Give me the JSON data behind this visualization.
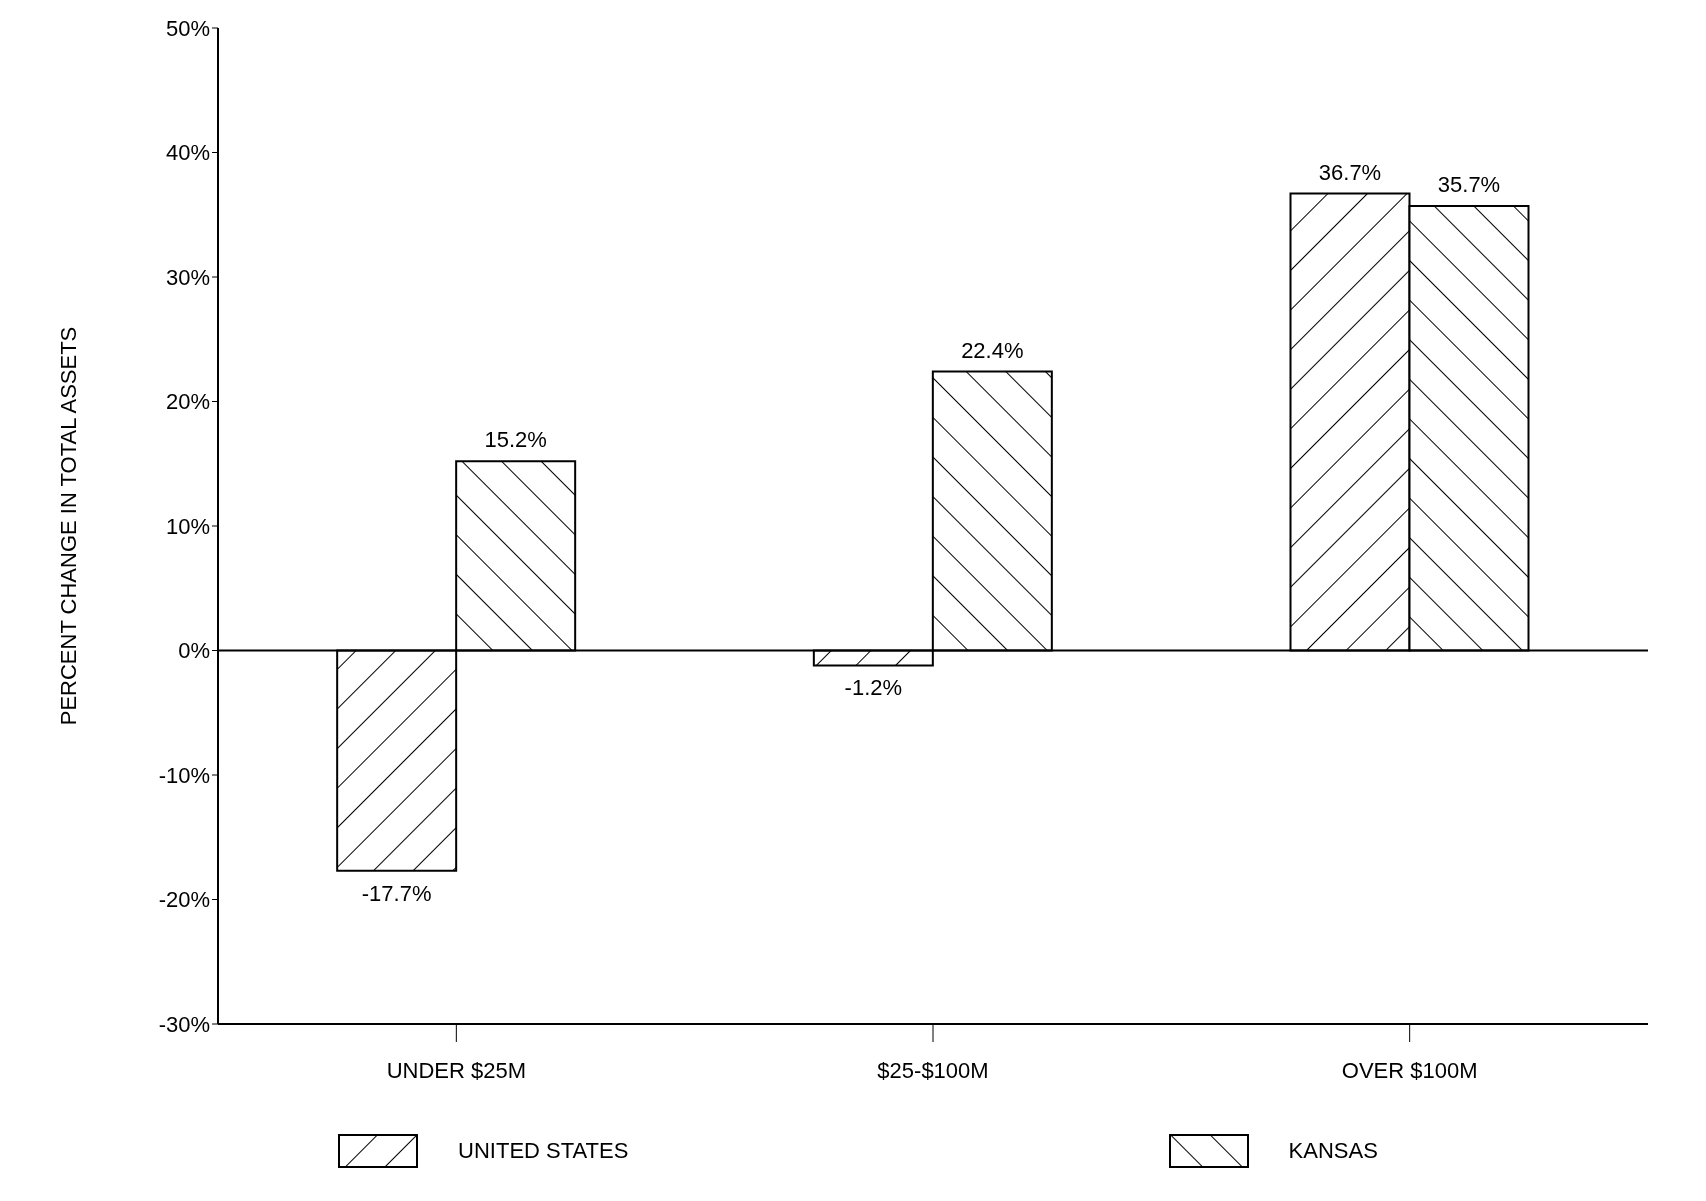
{
  "chart_data": {
    "type": "bar",
    "ylabel": "PERCENT CHANGE IN TOTAL ASSETS",
    "categories": [
      "UNDER $25M",
      "$25-$100M",
      "OVER $100M"
    ],
    "series": [
      {
        "name": "UNITED STATES",
        "color": "#000000",
        "values": [
          -17.7,
          -1.2,
          36.7
        ],
        "value_labels": [
          "-17.7%",
          "-1.2%",
          "36.7%"
        ]
      },
      {
        "name": "KANSAS",
        "color": "#000000",
        "values": [
          15.2,
          22.4,
          35.7
        ],
        "value_labels": [
          "15.2%",
          "22.4%",
          "35.7%"
        ]
      }
    ],
    "ylim": [
      -30,
      50
    ],
    "yticks": [
      {
        "value": -30,
        "label": "-30%"
      },
      {
        "value": -20,
        "label": "-20%"
      },
      {
        "value": -10,
        "label": "-10%"
      },
      {
        "value": 0,
        "label": "0%"
      },
      {
        "value": 10,
        "label": "10%"
      },
      {
        "value": 20,
        "label": "20%"
      },
      {
        "value": 30,
        "label": "30%"
      },
      {
        "value": 40,
        "label": "40%"
      },
      {
        "value": 50,
        "label": "50%"
      }
    ],
    "ref_lines": [
      {
        "axis": "y",
        "value": 0
      }
    ],
    "grid": false,
    "legend": "bottom"
  }
}
